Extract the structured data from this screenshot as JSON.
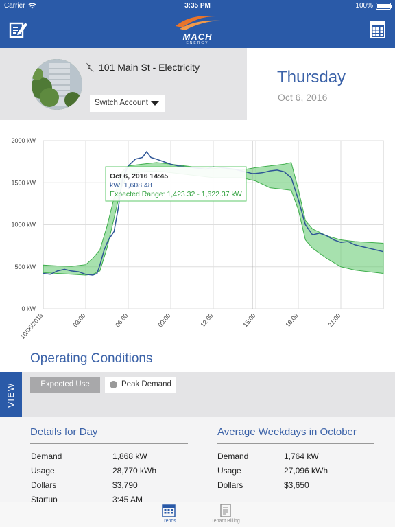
{
  "status_bar": {
    "carrier": "Carrier",
    "time": "3:35 PM",
    "battery": "100%"
  },
  "nav": {
    "logo_text": "MACH",
    "logo_sub": "ENERGY",
    "left_icon": "edit-icon",
    "right_icon": "calculator-icon"
  },
  "account": {
    "name": "101 Main St - Electricity",
    "switch_label": "Switch Account",
    "icon": "lightning-icon"
  },
  "date": {
    "day": "Thursday",
    "date": "Oct 6, 2016"
  },
  "chart_data": {
    "type": "line",
    "x_unit": "hours since 2016-10-06 00:00",
    "x_ticks": [
      {
        "x": 0,
        "label": "10/06/2016"
      },
      {
        "x": 3,
        "label": "03:00"
      },
      {
        "x": 6,
        "label": "06:00"
      },
      {
        "x": 9,
        "label": "09:00"
      },
      {
        "x": 12,
        "label": "12:00"
      },
      {
        "x": 15,
        "label": "15:00"
      },
      {
        "x": 18,
        "label": "18:00"
      },
      {
        "x": 21,
        "label": "21:00"
      }
    ],
    "y_ticks": [
      {
        "y": 0,
        "label": "0 kW"
      },
      {
        "y": 500,
        "label": "500 kW"
      },
      {
        "y": 1000,
        "label": "1000 kW"
      },
      {
        "y": 1500,
        "label": "1500 kW"
      },
      {
        "y": 2000,
        "label": "2000 kW"
      }
    ],
    "xlim": [
      0,
      24
    ],
    "ylim": [
      0,
      2000
    ],
    "grid": true,
    "series": [
      {
        "type": "band",
        "color": "#5fc96b",
        "upper": [
          [
            0,
            520
          ],
          [
            1,
            510
          ],
          [
            2,
            505
          ],
          [
            3,
            525
          ],
          [
            3.5,
            600
          ],
          [
            4,
            700
          ],
          [
            4.5,
            980
          ],
          [
            5,
            1320
          ],
          [
            5.5,
            1620
          ],
          [
            6,
            1700
          ],
          [
            7,
            1720
          ],
          [
            8,
            1740
          ],
          [
            9,
            1720
          ],
          [
            10,
            1700
          ],
          [
            11,
            1680
          ],
          [
            12,
            1670
          ],
          [
            13,
            1660
          ],
          [
            14,
            1650
          ],
          [
            15,
            1680
          ],
          [
            16,
            1700
          ],
          [
            17,
            1720
          ],
          [
            17.5,
            1740
          ],
          [
            18,
            1420
          ],
          [
            18.5,
            1050
          ],
          [
            19,
            950
          ],
          [
            20,
            870
          ],
          [
            21,
            820
          ],
          [
            22,
            800
          ],
          [
            23,
            790
          ],
          [
            24,
            780
          ]
        ],
        "lower": [
          [
            0,
            430
          ],
          [
            1,
            420
          ],
          [
            2,
            410
          ],
          [
            3,
            400
          ],
          [
            3.5,
            410
          ],
          [
            4,
            450
          ],
          [
            4.5,
            720
          ],
          [
            5,
            1080
          ],
          [
            5.5,
            1440
          ],
          [
            6,
            1600
          ],
          [
            7,
            1630
          ],
          [
            8,
            1640
          ],
          [
            9,
            1620
          ],
          [
            10,
            1600
          ],
          [
            11,
            1580
          ],
          [
            12,
            1560
          ],
          [
            13,
            1560
          ],
          [
            14,
            1560
          ],
          [
            15,
            1520
          ],
          [
            16,
            1440
          ],
          [
            17,
            1420
          ],
          [
            17.5,
            1410
          ],
          [
            18,
            1180
          ],
          [
            18.5,
            820
          ],
          [
            19,
            720
          ],
          [
            20,
            600
          ],
          [
            21,
            500
          ],
          [
            22,
            460
          ],
          [
            23,
            440
          ],
          [
            24,
            420
          ]
        ]
      },
      {
        "type": "line",
        "color": "#2e5596",
        "values": [
          [
            0,
            420
          ],
          [
            0.5,
            410
          ],
          [
            1,
            450
          ],
          [
            1.5,
            470
          ],
          [
            2,
            450
          ],
          [
            2.5,
            440
          ],
          [
            3,
            410
          ],
          [
            3.5,
            400
          ],
          [
            3.8,
            420
          ],
          [
            4,
            520
          ],
          [
            4.3,
            700
          ],
          [
            4.6,
            820
          ],
          [
            5,
            920
          ],
          [
            5.3,
            1200
          ],
          [
            5.6,
            1550
          ],
          [
            6,
            1700
          ],
          [
            6.5,
            1780
          ],
          [
            7,
            1800
          ],
          [
            7.3,
            1868
          ],
          [
            7.6,
            1800
          ],
          [
            8,
            1780
          ],
          [
            8.5,
            1750
          ],
          [
            9,
            1720
          ],
          [
            9.5,
            1700
          ],
          [
            10,
            1690
          ],
          [
            10.5,
            1680
          ],
          [
            11,
            1670
          ],
          [
            11.5,
            1660
          ],
          [
            12,
            1690
          ],
          [
            12.5,
            1680
          ],
          [
            13,
            1670
          ],
          [
            13.5,
            1660
          ],
          [
            14,
            1640
          ],
          [
            14.5,
            1620
          ],
          [
            14.75,
            1608
          ],
          [
            15,
            1610
          ],
          [
            15.5,
            1620
          ],
          [
            16,
            1640
          ],
          [
            16.5,
            1650
          ],
          [
            17,
            1630
          ],
          [
            17.5,
            1560
          ],
          [
            18,
            1300
          ],
          [
            18.5,
            1000
          ],
          [
            19,
            880
          ],
          [
            19.5,
            900
          ],
          [
            20,
            870
          ],
          [
            20.5,
            820
          ],
          [
            21,
            790
          ],
          [
            21.5,
            800
          ],
          [
            22,
            760
          ],
          [
            22.5,
            740
          ],
          [
            23,
            720
          ],
          [
            23.5,
            700
          ],
          [
            24,
            680
          ]
        ]
      }
    ],
    "crosshair_x": 14.75,
    "tooltip": {
      "title": "Oct 6, 2016 14:45",
      "value_label": "kW: 1,608.48",
      "range_label": "Expected Range: 1,423.32 - 1,622.37 kW"
    }
  },
  "operating": {
    "title": "Operating Conditions",
    "view_label": "VIEW",
    "expected_label": "Expected Use",
    "peak_label": "Peak Demand"
  },
  "details": {
    "left": {
      "title": "Details for Day",
      "rows": [
        {
          "label": "Demand",
          "value": "1,868 kW"
        },
        {
          "label": "Usage",
          "value": "28,770 kWh"
        },
        {
          "label": "Dollars",
          "value": "$3,790"
        },
        {
          "label": "Startup",
          "value": "3:45 AM"
        }
      ]
    },
    "right": {
      "title": "Average Weekdays in October",
      "rows": [
        {
          "label": "Demand",
          "value": "1,764 kW"
        },
        {
          "label": "Usage",
          "value": "27,096 kWh"
        },
        {
          "label": "Dollars",
          "value": "$3,650"
        }
      ]
    }
  },
  "tabs": [
    {
      "label": "Trends",
      "icon": "calendar-icon",
      "active": true
    },
    {
      "label": "Tenant Billing",
      "icon": "document-icon",
      "active": false
    }
  ]
}
